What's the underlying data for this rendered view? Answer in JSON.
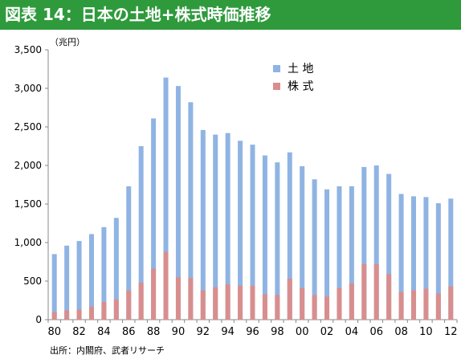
{
  "header": {
    "title": "図表 14：日本の土地+株式時価推移"
  },
  "source_note": "出所：内閣府、武者リサーチ",
  "colors": {
    "title_bg": "#2e9a3c",
    "land": "#8fb4e3",
    "stock": "#d98e8e"
  },
  "chart_data": {
    "type": "bar",
    "stacked": false,
    "overlapping": true,
    "unit_label": "（兆円）",
    "ylim": [
      0,
      3500
    ],
    "yticks": [
      "0",
      "500",
      "1,000",
      "1,500",
      "2,000",
      "2,500",
      "3,000",
      "3,500"
    ],
    "ytick_values": [
      0,
      500,
      1000,
      1500,
      2000,
      2500,
      3000,
      3500
    ],
    "years": [
      "1980",
      "1981",
      "1982",
      "1983",
      "1984",
      "1985",
      "1986",
      "1987",
      "1988",
      "1989",
      "1990",
      "1991",
      "1992",
      "1993",
      "1994",
      "1995",
      "1996",
      "1997",
      "1998",
      "1999",
      "2000",
      "2001",
      "2002",
      "2003",
      "2004",
      "2005",
      "2006",
      "2007",
      "2008",
      "2009",
      "2010",
      "2011",
      "2012"
    ],
    "x_tick_labels": [
      "80",
      "",
      "82",
      "",
      "84",
      "",
      "86",
      "",
      "88",
      "",
      "90",
      "",
      "92",
      "",
      "94",
      "",
      "96",
      "",
      "98",
      "",
      "00",
      "",
      "02",
      "",
      "04",
      "",
      "06",
      "",
      "08",
      "",
      "10",
      "",
      "12"
    ],
    "series": [
      {
        "name": "土 地",
        "values": [
          850,
          960,
          1020,
          1110,
          1200,
          1320,
          1730,
          2250,
          2610,
          3140,
          3030,
          2820,
          2460,
          2400,
          2420,
          2320,
          2270,
          2130,
          2040,
          2170,
          1990,
          1820,
          1690,
          1730,
          1730,
          1980,
          2000,
          1890,
          1630,
          1600,
          1590,
          1510,
          1570
        ]
      },
      {
        "name": "株 式",
        "values": [
          100,
          120,
          130,
          170,
          230,
          260,
          380,
          480,
          660,
          880,
          550,
          540,
          380,
          420,
          460,
          440,
          440,
          330,
          320,
          530,
          410,
          320,
          300,
          410,
          470,
          720,
          720,
          590,
          360,
          380,
          400,
          340,
          430
        ]
      }
    ],
    "legend_position": "top-right",
    "grid": false
  }
}
